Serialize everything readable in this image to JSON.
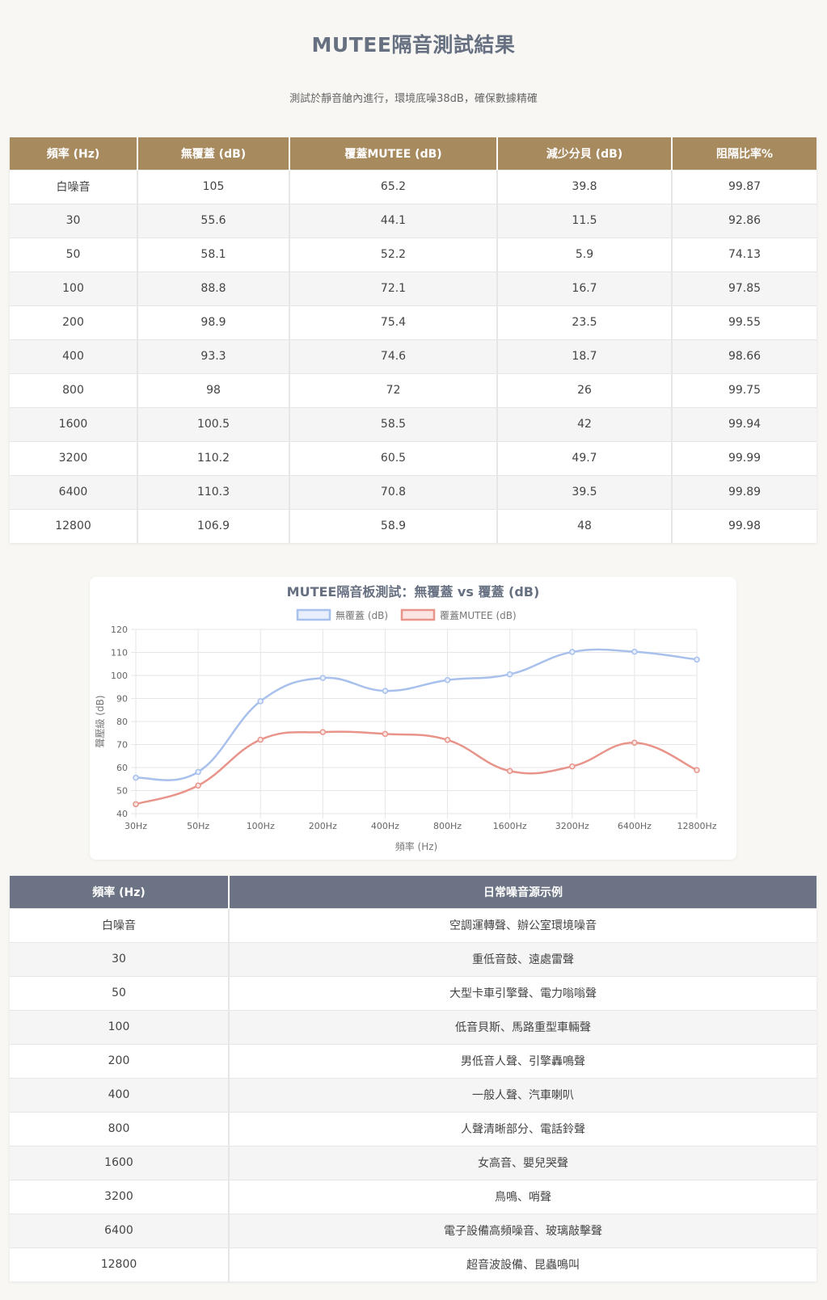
{
  "page": {
    "title": "MUTEE隔音測試結果",
    "subtitle": "測試於靜音艙內進行，環境底噪38dB，確保數據精確"
  },
  "results_table": {
    "headers": [
      "頻率 (Hz)",
      "無覆蓋 (dB)",
      "覆蓋MUTEE (dB)",
      "減少分貝 (dB)",
      "阻隔比率%"
    ],
    "rows": [
      [
        "白噪音",
        "105",
        "65.2",
        "39.8",
        "99.87"
      ],
      [
        "30",
        "55.6",
        "44.1",
        "11.5",
        "92.86"
      ],
      [
        "50",
        "58.1",
        "52.2",
        "5.9",
        "74.13"
      ],
      [
        "100",
        "88.8",
        "72.1",
        "16.7",
        "97.85"
      ],
      [
        "200",
        "98.9",
        "75.4",
        "23.5",
        "99.55"
      ],
      [
        "400",
        "93.3",
        "74.6",
        "18.7",
        "98.66"
      ],
      [
        "800",
        "98",
        "72",
        "26",
        "99.75"
      ],
      [
        "1600",
        "100.5",
        "58.5",
        "42",
        "99.94"
      ],
      [
        "3200",
        "110.2",
        "60.5",
        "49.7",
        "99.99"
      ],
      [
        "6400",
        "110.3",
        "70.8",
        "39.5",
        "99.89"
      ],
      [
        "12800",
        "106.9",
        "58.9",
        "48",
        "99.98"
      ]
    ]
  },
  "chart_data": {
    "type": "line",
    "title": "MUTEE隔音板測試：無覆蓋 vs 覆蓋 (dB)",
    "xlabel": "頻率 (Hz)",
    "ylabel": "聲壓級 (dB)",
    "categories": [
      "30Hz",
      "50Hz",
      "100Hz",
      "200Hz",
      "400Hz",
      "800Hz",
      "1600Hz",
      "3200Hz",
      "6400Hz",
      "12800Hz"
    ],
    "ylim": [
      40,
      120
    ],
    "yticks": [
      40,
      50,
      60,
      70,
      80,
      90,
      100,
      110,
      120
    ],
    "grid": true,
    "legend_position": "top-center",
    "series": [
      {
        "name": "無覆蓋 (dB)",
        "values": [
          55.6,
          58.1,
          88.8,
          98.9,
          93.3,
          98,
          100.5,
          110.2,
          110.3,
          106.9
        ],
        "color": "#a8c0ec",
        "fill": "#e8eefb"
      },
      {
        "name": "覆蓋MUTEE (dB)",
        "values": [
          44.1,
          52.2,
          72.1,
          75.4,
          74.6,
          72,
          58.5,
          60.5,
          70.8,
          58.9
        ],
        "color": "#e8948a",
        "fill": "#fbe5e2"
      }
    ]
  },
  "noise_table": {
    "headers": [
      "頻率 (Hz)",
      "日常噪音源示例"
    ],
    "rows": [
      [
        "白噪音",
        "空調運轉聲、辦公室環境噪音"
      ],
      [
        "30",
        "重低音鼓、遠處雷聲"
      ],
      [
        "50",
        "大型卡車引擎聲、電力嗡嗡聲"
      ],
      [
        "100",
        "低音貝斯、馬路重型車輛聲"
      ],
      [
        "200",
        "男低音人聲、引擎轟鳴聲"
      ],
      [
        "400",
        "一般人聲、汽車喇叭"
      ],
      [
        "800",
        "人聲清晰部分、電話鈴聲"
      ],
      [
        "1600",
        "女高音、嬰兒哭聲"
      ],
      [
        "3200",
        "鳥鳴、哨聲"
      ],
      [
        "6400",
        "電子設備高頻噪音、玻璃敲擊聲"
      ],
      [
        "12800",
        "超音波設備、昆蟲鳴叫"
      ]
    ]
  },
  "colors": {
    "background": "#f8f7f3",
    "results_header": "#a88a5f",
    "noise_header": "#6c7384",
    "title_color": "#667081"
  }
}
